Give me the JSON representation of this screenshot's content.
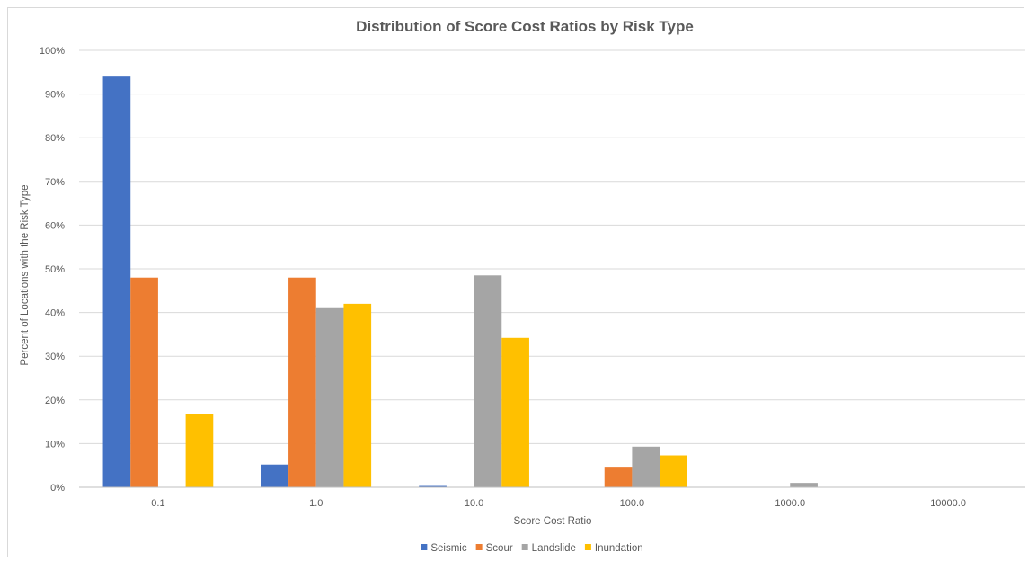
{
  "chart_data": {
    "type": "bar",
    "title": "Distribution of Score Cost Ratios by Risk Type",
    "xlabel": "Score Cost Ratio",
    "ylabel": "Percent of Locations with the Risk Type",
    "categories": [
      "0.1",
      "1.0",
      "10.0",
      "100.0",
      "1000.0",
      "10000.0"
    ],
    "ylim": [
      0,
      100
    ],
    "yticks": [
      0,
      10,
      20,
      30,
      40,
      50,
      60,
      70,
      80,
      90,
      100
    ],
    "ytick_labels": [
      "0%",
      "10%",
      "20%",
      "30%",
      "40%",
      "50%",
      "60%",
      "70%",
      "80%",
      "90%",
      "100%"
    ],
    "grid": true,
    "legend_position": "bottom",
    "series": [
      {
        "name": "Seismic",
        "color": "#4472c4",
        "values": [
          94,
          5.2,
          0.3,
          0,
          0,
          0
        ]
      },
      {
        "name": "Scour",
        "color": "#ed7d31",
        "values": [
          48,
          48,
          0,
          4.5,
          0,
          0
        ]
      },
      {
        "name": "Landslide",
        "color": "#a5a5a5",
        "values": [
          0,
          41,
          48.5,
          9.3,
          1.0,
          0
        ]
      },
      {
        "name": "Inundation",
        "color": "#ffc000",
        "values": [
          16.7,
          42,
          34.2,
          7.3,
          0,
          0
        ]
      }
    ]
  }
}
